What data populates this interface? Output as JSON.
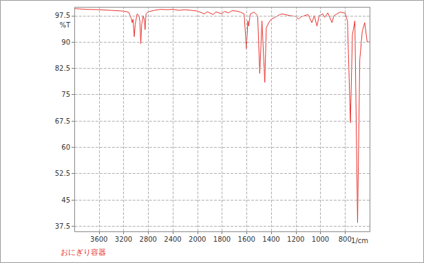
{
  "chart_data": [
    {
      "type": "line",
      "title": "おにぎり容器",
      "y_label": "%T",
      "xlim": [
        4000,
        2000
      ],
      "xticks": [
        3600,
        3200,
        2800,
        2400
      ],
      "ylim": [
        36,
        100
      ],
      "yticks": [
        37.5,
        45,
        52.5,
        60,
        67.5,
        75,
        82.5,
        90,
        97.5
      ],
      "grid": true,
      "color": "#e8302c",
      "x": [
        4000,
        3800,
        3600,
        3400,
        3200,
        3120,
        3100,
        3082,
        3070,
        3060,
        3045,
        3026,
        3010,
        3001,
        2980,
        2950,
        2935,
        2920,
        2905,
        2880,
        2865,
        2850,
        2835,
        2800,
        2700,
        2600,
        2500,
        2400,
        2300,
        2200,
        2100,
        2000
      ],
      "values": [
        99.5,
        99.3,
        99.2,
        99.0,
        98.8,
        98.5,
        97.8,
        97.0,
        96.4,
        95.5,
        96.5,
        91.5,
        95.0,
        96.0,
        98.0,
        97.5,
        96.0,
        89.5,
        95.0,
        97.5,
        96.5,
        93.5,
        98.0,
        98.6,
        99.0,
        99.3,
        99.2,
        99.3,
        99.0,
        99.2,
        99.0,
        98.8
      ]
    },
    {
      "type": "line",
      "x_label": "1/cm",
      "xlim": [
        2000,
        600
      ],
      "xticks": [
        2000,
        1800,
        1600,
        1400,
        1200,
        1000,
        800
      ],
      "ylim": [
        36,
        100
      ],
      "yticks": [
        37.5,
        45,
        52.5,
        60,
        67.5,
        75,
        82.5,
        90,
        97.5
      ],
      "grid": true,
      "tick_labels": "x",
      "color": "#e8302c",
      "x": [
        2000,
        1943,
        1920,
        1870,
        1850,
        1801,
        1780,
        1745,
        1720,
        1680,
        1650,
        1620,
        1601,
        1590,
        1583,
        1570,
        1540,
        1510,
        1493,
        1475,
        1452,
        1440,
        1420,
        1400,
        1370,
        1330,
        1310,
        1250,
        1200,
        1180,
        1155,
        1100,
        1069,
        1050,
        1028,
        1010,
        980,
        965,
        940,
        906,
        890,
        840,
        800,
        780,
        756,
        740,
        720,
        698,
        680,
        660,
        640,
        620,
        600
      ],
      "values": [
        98.8,
        98.0,
        98.6,
        97.8,
        98.6,
        98.0,
        98.7,
        98.3,
        98.9,
        98.8,
        98.5,
        98.0,
        88.0,
        96.0,
        94.5,
        98.0,
        98.5,
        97.5,
        81.0,
        96.0,
        78.5,
        94.0,
        95.5,
        96.5,
        97.0,
        97.8,
        98.0,
        97.5,
        97.3,
        96.5,
        97.2,
        97.8,
        95.5,
        97.5,
        94.5,
        97.5,
        98.0,
        97.0,
        98.3,
        95.5,
        97.5,
        98.5,
        98.2,
        96.0,
        67.0,
        92.0,
        96.0,
        38.5,
        85.0,
        93.0,
        95.5,
        90.0,
        90.0
      ]
    }
  ]
}
